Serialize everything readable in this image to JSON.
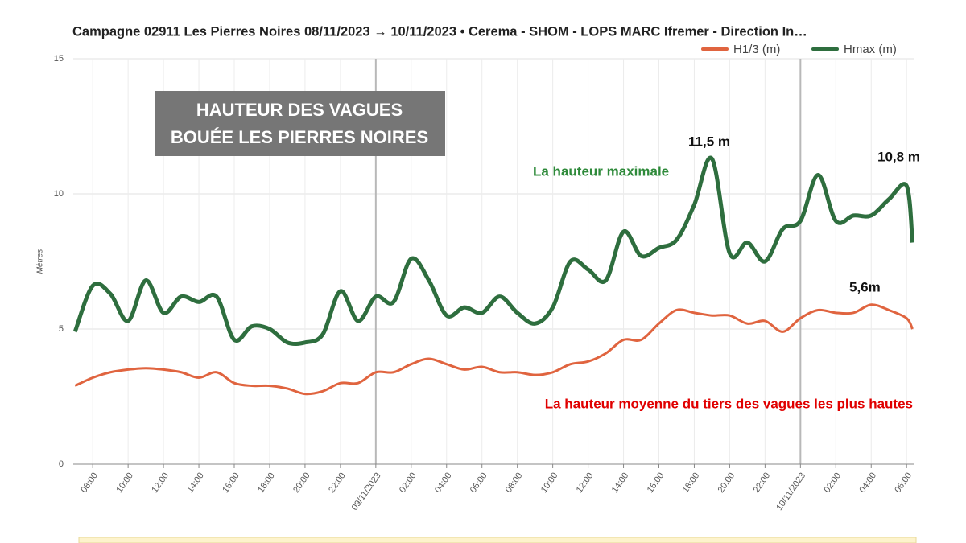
{
  "chart_data": {
    "type": "line",
    "title": "Campagne 02911 Les Pierres Noires 08/11/2023 → 10/11/2023   •   Cerema - SHOM - LOPS MARC Ifremer - Direction In…",
    "y_label": "Mètres",
    "overlay_title": [
      "HAUTEUR DES VAGUES",
      "BOUÉE LES PIERRES NOIRES"
    ],
    "annotations": [
      "La hauteur maximale",
      "La hauteur moyenne du tiers des vagues les plus hautes",
      "11,5 m",
      "10,8 m",
      "5,6m"
    ],
    "x": [
      "2023-11-08T07:00",
      "2023-11-08T08:00",
      "2023-11-08T09:00",
      "2023-11-08T10:00",
      "2023-11-08T11:00",
      "2023-11-08T12:00",
      "2023-11-08T13:00",
      "2023-11-08T14:00",
      "2023-11-08T15:00",
      "2023-11-08T16:00",
      "2023-11-08T17:00",
      "2023-11-08T18:00",
      "2023-11-08T19:00",
      "2023-11-08T20:00",
      "2023-11-08T21:00",
      "2023-11-08T22:00",
      "2023-11-08T23:00",
      "2023-11-09T00:00",
      "2023-11-09T01:00",
      "2023-11-09T02:00",
      "2023-11-09T03:00",
      "2023-11-09T04:00",
      "2023-11-09T05:00",
      "2023-11-09T06:00",
      "2023-11-09T07:00",
      "2023-11-09T08:00",
      "2023-11-09T09:00",
      "2023-11-09T10:00",
      "2023-11-09T11:00",
      "2023-11-09T12:00",
      "2023-11-09T13:00",
      "2023-11-09T14:00",
      "2023-11-09T15:00",
      "2023-11-09T16:00",
      "2023-11-09T17:00",
      "2023-11-09T18:00",
      "2023-11-09T19:00",
      "2023-11-09T20:00",
      "2023-11-09T21:00",
      "2023-11-09T22:00",
      "2023-11-09T23:00",
      "2023-11-10T00:00",
      "2023-11-10T01:00",
      "2023-11-10T02:00",
      "2023-11-10T03:00",
      "2023-11-10T04:00",
      "2023-11-10T05:00",
      "2023-11-10T06:00",
      "2023-11-10T06:20"
    ],
    "series": [
      {
        "name": "H1/3 (m)",
        "color": "#e0643f",
        "width": 3,
        "values": [
          2.9,
          3.2,
          3.4,
          3.5,
          3.55,
          3.5,
          3.4,
          3.2,
          3.4,
          3.0,
          2.9,
          2.9,
          2.8,
          2.6,
          2.7,
          3.0,
          3.0,
          3.4,
          3.4,
          3.7,
          3.9,
          3.7,
          3.5,
          3.6,
          3.4,
          3.4,
          3.3,
          3.4,
          3.7,
          3.8,
          4.1,
          4.6,
          4.6,
          5.2,
          5.7,
          5.6,
          5.5,
          5.5,
          5.2,
          5.3,
          4.9,
          5.4,
          5.7,
          5.6,
          5.6,
          5.9,
          5.7,
          5.4,
          5.0
        ]
      },
      {
        "name": "Hmax (m)",
        "color": "#2e6e3e",
        "width": 5,
        "values": [
          4.9,
          6.6,
          6.3,
          5.3,
          6.8,
          5.6,
          6.2,
          6.0,
          6.2,
          4.6,
          5.1,
          5.0,
          4.5,
          4.5,
          4.8,
          6.4,
          5.3,
          6.2,
          6.0,
          7.6,
          6.8,
          5.5,
          5.8,
          5.6,
          6.2,
          5.6,
          5.2,
          5.8,
          7.5,
          7.2,
          6.8,
          8.6,
          7.7,
          8.0,
          8.3,
          9.6,
          11.3,
          7.8,
          8.2,
          7.5,
          8.7,
          9.0,
          10.7,
          9.0,
          9.2,
          9.2,
          9.8,
          10.3,
          8.2
        ]
      }
    ],
    "xlim": [
      "2023-11-08T06:54",
      "2023-11-10T06:24"
    ],
    "xticks": [
      {
        "value": "2023-11-08T08:00",
        "label": "08:00"
      },
      {
        "value": "2023-11-08T10:00",
        "label": "10:00"
      },
      {
        "value": "2023-11-08T12:00",
        "label": "12:00"
      },
      {
        "value": "2023-11-08T14:00",
        "label": "14:00"
      },
      {
        "value": "2023-11-08T16:00",
        "label": "16:00"
      },
      {
        "value": "2023-11-08T18:00",
        "label": "18:00"
      },
      {
        "value": "2023-11-08T20:00",
        "label": "20:00"
      },
      {
        "value": "2023-11-08T22:00",
        "label": "22:00"
      },
      {
        "value": "2023-11-09T00:00",
        "label": "09/11/2023"
      },
      {
        "value": "2023-11-09T02:00",
        "label": "02:00"
      },
      {
        "value": "2023-11-09T04:00",
        "label": "04:00"
      },
      {
        "value": "2023-11-09T06:00",
        "label": "06:00"
      },
      {
        "value": "2023-11-09T08:00",
        "label": "08:00"
      },
      {
        "value": "2023-11-09T10:00",
        "label": "10:00"
      },
      {
        "value": "2023-11-09T12:00",
        "label": "12:00"
      },
      {
        "value": "2023-11-09T14:00",
        "label": "14:00"
      },
      {
        "value": "2023-11-09T16:00",
        "label": "16:00"
      },
      {
        "value": "2023-11-09T18:00",
        "label": "18:00"
      },
      {
        "value": "2023-11-09T20:00",
        "label": "20:00"
      },
      {
        "value": "2023-11-09T22:00",
        "label": "22:00"
      },
      {
        "value": "2023-11-10T00:00",
        "label": "10/11/2023"
      },
      {
        "value": "2023-11-10T02:00",
        "label": "02:00"
      },
      {
        "value": "2023-11-10T04:00",
        "label": "04:00"
      },
      {
        "value": "2023-11-10T06:00",
        "label": "06:00"
      }
    ],
    "ylim": [
      0,
      15
    ],
    "yticks": [
      0,
      5,
      10,
      15
    ],
    "grid": true
  }
}
